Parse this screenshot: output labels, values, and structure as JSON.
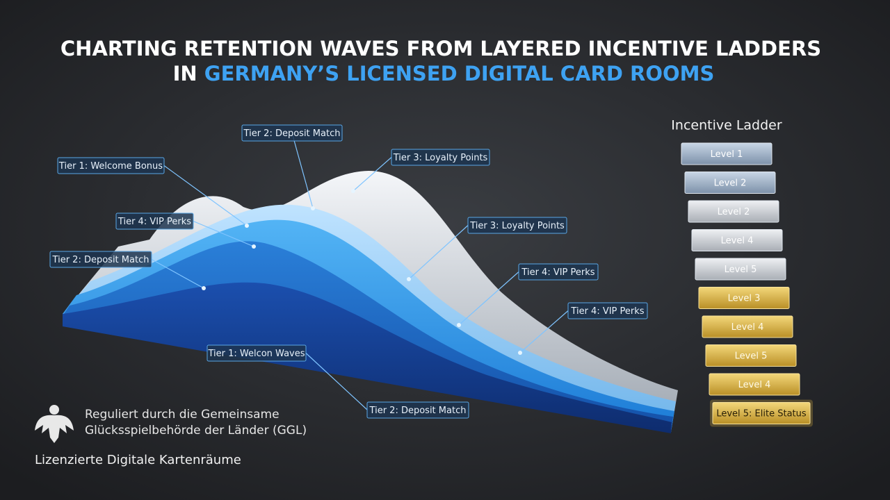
{
  "title": {
    "line1": "CHARTING RETENTION WAVES FROM LAYERED INCENTIVE LADDERS",
    "line2_prefix": "IN",
    "line2_highlight": "GERMANY’S LICENSED DIGITAL CARD ROOMS"
  },
  "callouts": [
    "Tier 2: Deposit Match",
    "Tier 1: Welcome Bonus",
    "Tier 3: Loyalty Points",
    "Tier 4: VIP Perks",
    "Tier 3: Loyalty Points",
    "Tier 2: Deposit Match",
    "Tier 4: VIP Perks",
    "Tier 4: VIP Perks",
    "Tier 1: Welcon Waves",
    "Tier 2: Deposit Match"
  ],
  "ladder": {
    "title": "Incentive Ladder",
    "levels": [
      "Level 1",
      "Level 2",
      "Level 2",
      "Level 4",
      "Level 5",
      "Level 3",
      "Level 4",
      "Level 5",
      "Level 4",
      "Level 5: Elite Status"
    ]
  },
  "footer": {
    "regulator_line1": "Reguliert durch die Gemeinsame",
    "regulator_line2": "Glücksspielbehörde der Länder (GGL)",
    "tagline": "Lizenzierte Digitale Kartenräume"
  }
}
